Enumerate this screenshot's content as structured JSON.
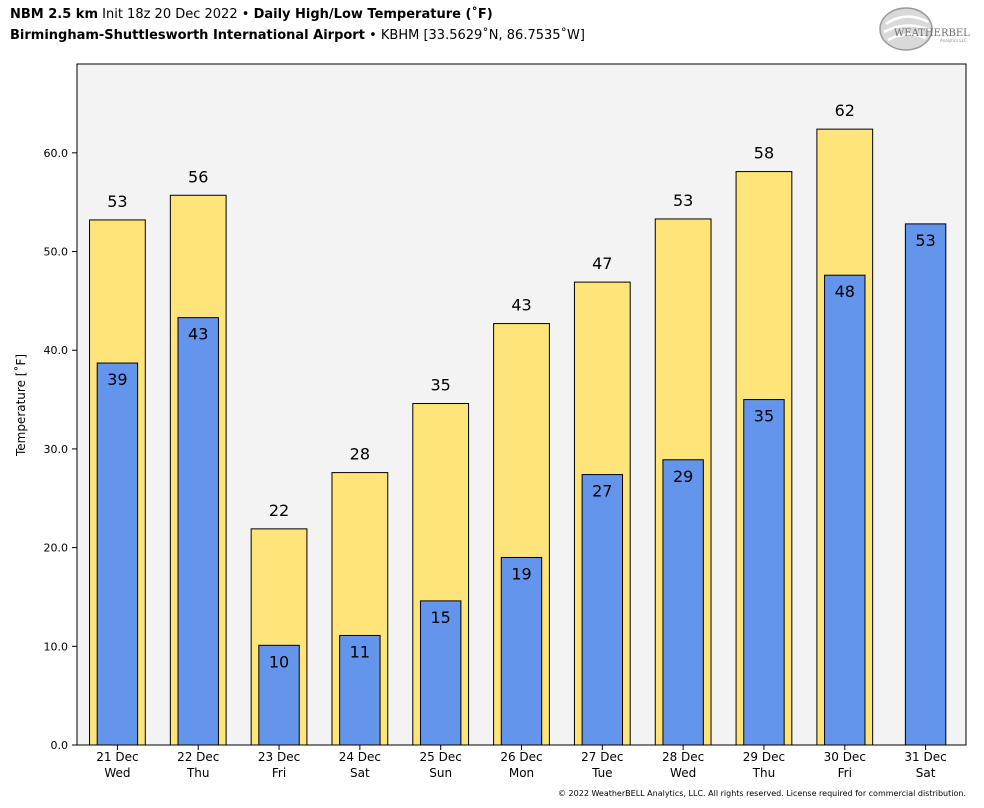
{
  "header": {
    "model": "NBM 2.5 km",
    "init": "Init 18z 20 Dec 2022",
    "sep": "•",
    "product": "Daily High/Low Temperature (˚F)",
    "station_name": "Birmingham-Shuttlesworth International Airport",
    "station_info": "KBHM [33.5629˚N, 86.7535˚W]"
  },
  "logo": {
    "text": "WEATHERBELL",
    "sub": "Analytics LLC"
  },
  "footer": "© 2022 WeatherBELL Analytics, LLC. All rights reserved. License required for commercial distribution.",
  "colors": {
    "high": "#FFE47A",
    "low": "#6495ED",
    "plot_bg": "#F3F3F3"
  },
  "chart_data": {
    "type": "bar",
    "ylabel": "Temperature [˚F]",
    "ylim": [
      0,
      69
    ],
    "yticks": [
      "0.0",
      "10.0",
      "20.0",
      "30.0",
      "40.0",
      "50.0",
      "60.0"
    ],
    "categories": [
      [
        "21 Dec",
        "Wed"
      ],
      [
        "22 Dec",
        "Thu"
      ],
      [
        "23 Dec",
        "Fri"
      ],
      [
        "24 Dec",
        "Sat"
      ],
      [
        "25 Dec",
        "Sun"
      ],
      [
        "26 Dec",
        "Mon"
      ],
      [
        "27 Dec",
        "Tue"
      ],
      [
        "28 Dec",
        "Wed"
      ],
      [
        "29 Dec",
        "Thu"
      ],
      [
        "30 Dec",
        "Fri"
      ],
      [
        "31 Dec",
        "Sat"
      ]
    ],
    "series": [
      {
        "values": [
          53.2,
          55.7,
          21.9,
          27.6,
          34.6,
          42.7,
          46.9,
          53.3,
          58.1,
          62.4,
          null
        ],
        "labels": [
          "53",
          "56",
          "22",
          "28",
          "35",
          "43",
          "47",
          "53",
          "58",
          "62",
          ""
        ]
      },
      {
        "values": [
          38.7,
          43.3,
          10.1,
          11.1,
          14.6,
          19.0,
          27.4,
          28.9,
          35.0,
          47.6,
          52.8
        ],
        "labels": [
          "39",
          "43",
          "10",
          "11",
          "15",
          "19",
          "27",
          "29",
          "35",
          "48",
          "53"
        ]
      }
    ],
    "grid": false,
    "legend": "none"
  }
}
